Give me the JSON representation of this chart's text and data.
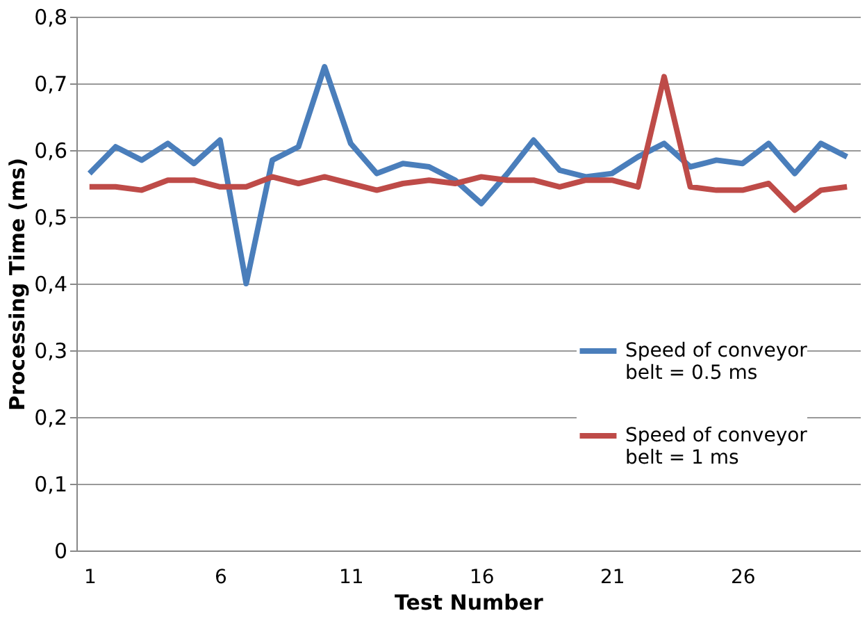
{
  "chart_data": {
    "type": "line",
    "xlabel": "Test Number",
    "ylabel": "Processing Time (ms)",
    "categories": [
      "1",
      null,
      null,
      null,
      null,
      "6",
      null,
      null,
      null,
      null,
      "11",
      null,
      null,
      null,
      null,
      "16",
      null,
      null,
      null,
      null,
      "21",
      null,
      null,
      null,
      null,
      "26",
      null,
      null,
      null,
      null
    ],
    "series": [
      {
        "name": "Speed of conveyor belt = 0.5 ms",
        "color": "#4a7ebb",
        "values": [
          0.565,
          0.605,
          0.585,
          0.61,
          0.58,
          0.615,
          0.4,
          0.585,
          0.605,
          0.725,
          0.61,
          0.565,
          0.58,
          0.575,
          0.555,
          0.52,
          0.565,
          0.615,
          0.57,
          0.56,
          0.565,
          0.59,
          0.61,
          0.575,
          0.585,
          0.58,
          0.61,
          0.565,
          0.61,
          0.59
        ]
      },
      {
        "name": "Speed of conveyor belt = 1 ms",
        "color": "#be4b48",
        "values": [
          0.545,
          0.545,
          0.54,
          0.555,
          0.555,
          0.545,
          0.545,
          0.56,
          0.55,
          0.56,
          0.55,
          0.54,
          0.55,
          0.555,
          0.55,
          0.56,
          0.555,
          0.555,
          0.545,
          0.555,
          0.555,
          0.545,
          0.71,
          0.545,
          0.54,
          0.54,
          0.55,
          0.51,
          0.54,
          0.545
        ]
      }
    ],
    "ylim": [
      0,
      0.8
    ],
    "yticks": [
      0,
      {
        "value": 0.1,
        "label": "0,1"
      },
      {
        "value": 0.2,
        "label": "0,2"
      },
      {
        "value": 0.3,
        "label": "0,3"
      },
      {
        "value": 0.4,
        "label": "0,4"
      },
      {
        "value": 0.5,
        "label": "0,5"
      },
      {
        "value": 0.6,
        "label": "0,6"
      },
      {
        "value": 0.7,
        "label": "0,7"
      },
      {
        "value": 0.8,
        "label": "0,8"
      }
    ],
    "grid": "y",
    "legend": "bottom right",
    "marker": "none",
    "line_style": "solid"
  }
}
